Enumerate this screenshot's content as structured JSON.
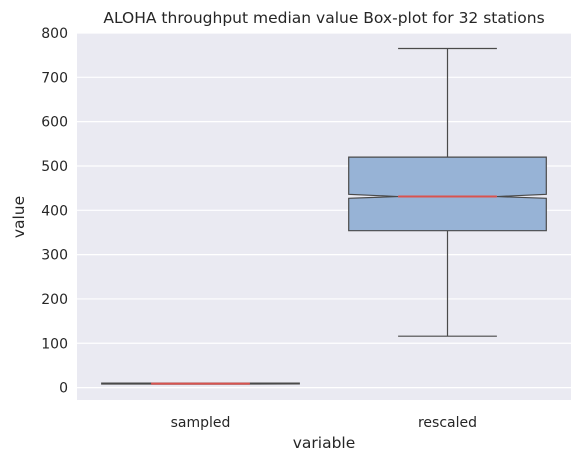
{
  "chart_data": {
    "type": "box",
    "title": "ALOHA throughput median value Box-plot for 32 stations",
    "xlabel": "variable",
    "ylabel": "value",
    "ylim": [
      -28,
      800
    ],
    "yticks": [
      0,
      100,
      200,
      300,
      400,
      500,
      600,
      700,
      800
    ],
    "grid": true,
    "notched": true,
    "categories": [
      "sampled",
      "rescaled"
    ],
    "boxes": [
      {
        "category": "sampled",
        "whisker_low": 8,
        "q1": 8,
        "median": 9,
        "q3": 10,
        "whisker_high": 10,
        "notch_low": 8.5,
        "notch_high": 9.5
      },
      {
        "category": "rescaled",
        "whisker_low": 116,
        "q1": 354,
        "median": 431,
        "q3": 520,
        "whisker_high": 765,
        "notch_low": 427,
        "notch_high": 436
      }
    ],
    "colors": {
      "background": "#eaeaf2",
      "box_fill": "#97b3d6",
      "box_edge": "#4a4a4a",
      "median": "#d9534f",
      "grid": "#ffffff"
    }
  }
}
